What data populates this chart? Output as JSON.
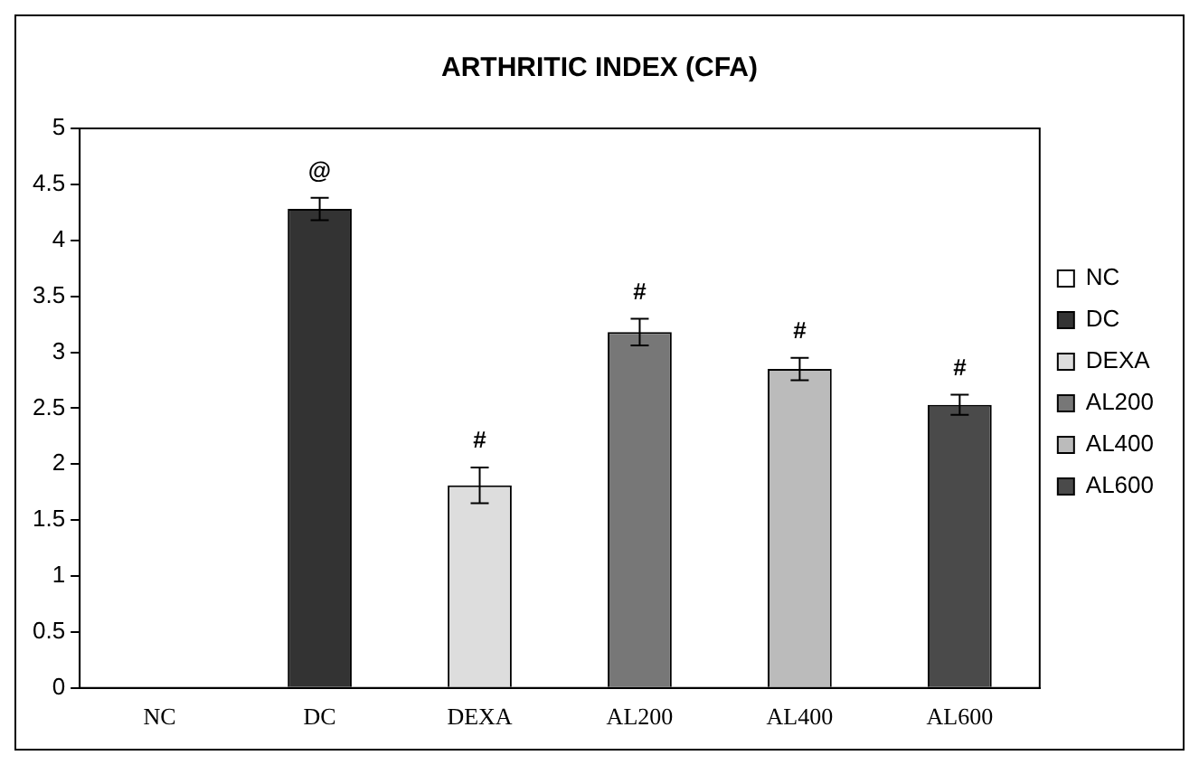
{
  "chart_data": {
    "type": "bar",
    "title": "ARTHRITIC INDEX (CFA)",
    "categories": [
      "NC",
      "DC",
      "DEXA",
      "AL200",
      "AL400",
      "AL600"
    ],
    "series": [
      {
        "name": "NC",
        "color": "#ffffff",
        "values": [
          null,
          null,
          null,
          null,
          null,
          null
        ]
      },
      {
        "name": "DC",
        "color": "#333333",
        "values": [
          null,
          4.28,
          null,
          null,
          null,
          null
        ],
        "errors": [
          null,
          0.1,
          null,
          null,
          null,
          null
        ]
      },
      {
        "name": "DEXA",
        "color": "#dddddd",
        "values": [
          null,
          null,
          1.81,
          null,
          null,
          null
        ],
        "errors": [
          null,
          null,
          0.16,
          null,
          null,
          null
        ]
      },
      {
        "name": "AL200",
        "color": "#777777",
        "values": [
          null,
          null,
          null,
          3.18,
          null,
          null
        ],
        "errors": [
          null,
          null,
          null,
          0.12,
          null,
          null
        ]
      },
      {
        "name": "AL400",
        "color": "#bbbbbb",
        "values": [
          null,
          null,
          null,
          null,
          2.85,
          null
        ],
        "errors": [
          null,
          null,
          null,
          null,
          0.1,
          null
        ]
      },
      {
        "name": "AL600",
        "color": "#4a4a4a",
        "values": [
          null,
          null,
          null,
          null,
          null,
          2.53
        ],
        "errors": [
          null,
          null,
          null,
          null,
          null,
          0.09
        ]
      }
    ],
    "ylim": [
      0,
      5
    ],
    "yticks": [
      0,
      0.5,
      1,
      1.5,
      2,
      2.5,
      3,
      3.5,
      4,
      4.5,
      5
    ],
    "grid": false,
    "legend": "right",
    "annotations": [
      {
        "text": "@",
        "x": "DC",
        "y": 4.28
      },
      {
        "text": "#",
        "x": "DEXA",
        "y": 1.81
      },
      {
        "text": "#",
        "x": "AL200",
        "y": 3.18
      },
      {
        "text": "#",
        "x": "AL400",
        "y": 2.85
      },
      {
        "text": "#",
        "x": "AL600",
        "y": 2.53
      }
    ]
  }
}
